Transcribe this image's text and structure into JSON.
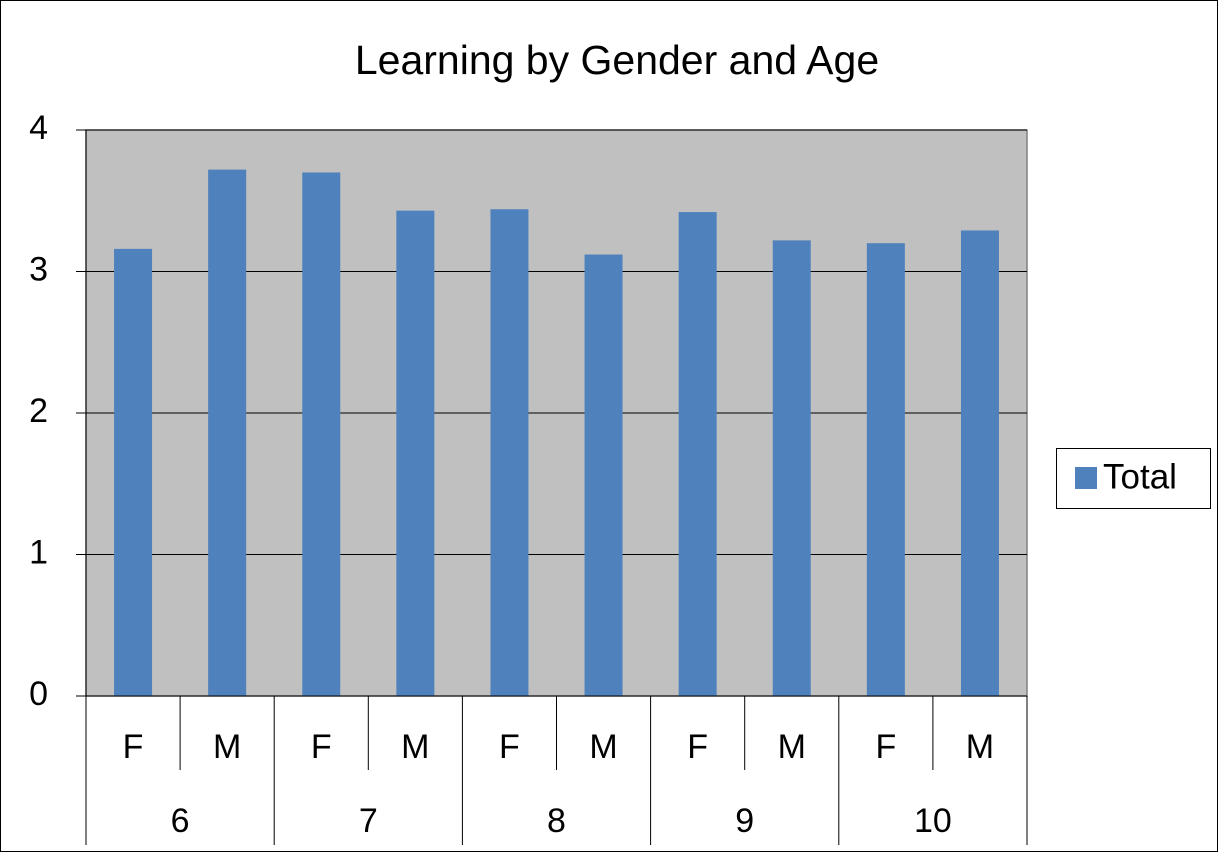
{
  "chart_data": {
    "type": "bar",
    "title": "Learning by Gender and Age",
    "categories": [
      "F",
      "M",
      "F",
      "M",
      "F",
      "M",
      "F",
      "M",
      "F",
      "M"
    ],
    "group_categories": [
      "6",
      "7",
      "8",
      "9",
      "10"
    ],
    "series": [
      {
        "name": "Total",
        "color": "#4f81bd",
        "values": [
          3.16,
          3.72,
          3.7,
          3.43,
          3.44,
          3.12,
          3.42,
          3.22,
          3.2,
          3.29
        ]
      }
    ],
    "ylim": [
      0,
      4
    ],
    "yticks": [
      0,
      1,
      2,
      3,
      4
    ],
    "grid": true,
    "legend": "right"
  }
}
